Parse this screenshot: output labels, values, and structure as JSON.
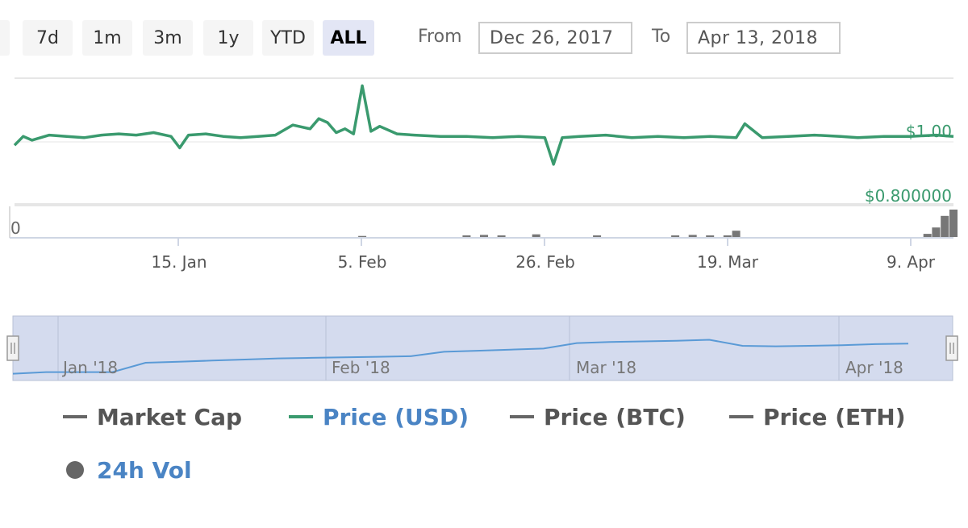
{
  "toolbar": {
    "ranges": [
      {
        "label": "7d",
        "active": false
      },
      {
        "label": "1m",
        "active": false
      },
      {
        "label": "3m",
        "active": false
      },
      {
        "label": "1y",
        "active": false
      },
      {
        "label": "YTD",
        "active": false
      },
      {
        "label": "ALL",
        "active": true
      }
    ],
    "from_label": "From",
    "from_value": "Dec 26, 2017",
    "to_label": "To",
    "to_value": "Apr 13, 2018"
  },
  "colors": {
    "price_usd": "#3a9a6e",
    "navigator_line": "#5a9ad6",
    "navigator_fill": "#d4dbee",
    "volume": "#777777",
    "legend_active": "#4a84c4",
    "legend_inactive": "#555555"
  },
  "chart_data": {
    "type": "line",
    "x_range": [
      "2017-12-26",
      "2018-04-13"
    ],
    "xticks": [
      "15. Jan",
      "5. Feb",
      "26. Feb",
      "19. Mar",
      "9. Apr"
    ],
    "price_axis": {
      "labels": [
        "$1.00",
        "$0.800000"
      ],
      "values": [
        1.0,
        0.8
      ],
      "ylim": [
        0.72,
        1.22
      ]
    },
    "volume_axis": {
      "labels": [
        "0"
      ]
    },
    "series": [
      {
        "name": "Price (USD)",
        "x": [
          "2017-12-26",
          "2017-12-27",
          "2017-12-28",
          "2017-12-30",
          "2018-01-01",
          "2018-01-03",
          "2018-01-05",
          "2018-01-07",
          "2018-01-09",
          "2018-01-11",
          "2018-01-13",
          "2018-01-14",
          "2018-01-15",
          "2018-01-17",
          "2018-01-19",
          "2018-01-21",
          "2018-01-23",
          "2018-01-25",
          "2018-01-27",
          "2018-01-29",
          "2018-01-30",
          "2018-01-31",
          "2018-02-01",
          "2018-02-02",
          "2018-02-03",
          "2018-02-04",
          "2018-02-05",
          "2018-02-06",
          "2018-02-08",
          "2018-02-10",
          "2018-02-13",
          "2018-02-16",
          "2018-02-19",
          "2018-02-22",
          "2018-02-25",
          "2018-02-26",
          "2018-02-27",
          "2018-03-01",
          "2018-03-04",
          "2018-03-07",
          "2018-03-10",
          "2018-03-13",
          "2018-03-16",
          "2018-03-19",
          "2018-03-20",
          "2018-03-22",
          "2018-03-25",
          "2018-03-28",
          "2018-03-31",
          "2018-04-02",
          "2018-04-05",
          "2018-04-08",
          "2018-04-11",
          "2018-04-13"
        ],
        "values": [
          0.955,
          0.99,
          0.975,
          0.995,
          0.99,
          0.985,
          0.995,
          1.0,
          0.995,
          1.005,
          0.99,
          0.945,
          0.995,
          1.0,
          0.99,
          0.985,
          0.99,
          0.995,
          1.035,
          1.02,
          1.06,
          1.045,
          1.005,
          1.02,
          1.0,
          1.19,
          1.01,
          1.03,
          1.0,
          0.995,
          0.99,
          0.99,
          0.985,
          0.99,
          0.985,
          0.88,
          0.985,
          0.99,
          0.995,
          0.985,
          0.99,
          0.985,
          0.99,
          0.985,
          1.04,
          0.985,
          0.99,
          0.995,
          0.99,
          0.985,
          0.99,
          0.99,
          0.995,
          0.99
        ]
      }
    ],
    "volume": {
      "name": "24h Vol",
      "x": [
        "2018-02-04",
        "2018-02-16",
        "2018-02-18",
        "2018-02-20",
        "2018-02-24",
        "2018-03-03",
        "2018-03-12",
        "2018-03-14",
        "2018-03-16",
        "2018-03-18",
        "2018-03-19",
        "2018-04-10",
        "2018-04-11",
        "2018-04-12",
        "2018-04-13"
      ],
      "values": [
        2,
        3,
        4,
        3,
        5,
        3,
        3,
        4,
        3,
        3,
        12,
        6,
        18,
        40,
        52
      ]
    },
    "navigator": {
      "xticks": [
        "Jan '18",
        "Feb '18",
        "Mar '18",
        "Apr '18"
      ],
      "values": [
        0.02,
        0.05,
        0.05,
        0.05,
        0.22,
        0.24,
        0.26,
        0.28,
        0.3,
        0.31,
        0.32,
        0.33,
        0.34,
        0.42,
        0.44,
        0.46,
        0.48,
        0.58,
        0.6,
        0.61,
        0.62,
        0.64,
        0.53,
        0.52,
        0.53,
        0.54,
        0.56,
        0.57
      ]
    }
  },
  "legend": [
    {
      "label": "Market Cap",
      "active": false
    },
    {
      "label": "Price (USD)",
      "active": true
    },
    {
      "label": "Price (BTC)",
      "active": false
    },
    {
      "label": "Price (ETH)",
      "active": false
    },
    {
      "label": "24h Vol",
      "active": true
    }
  ]
}
